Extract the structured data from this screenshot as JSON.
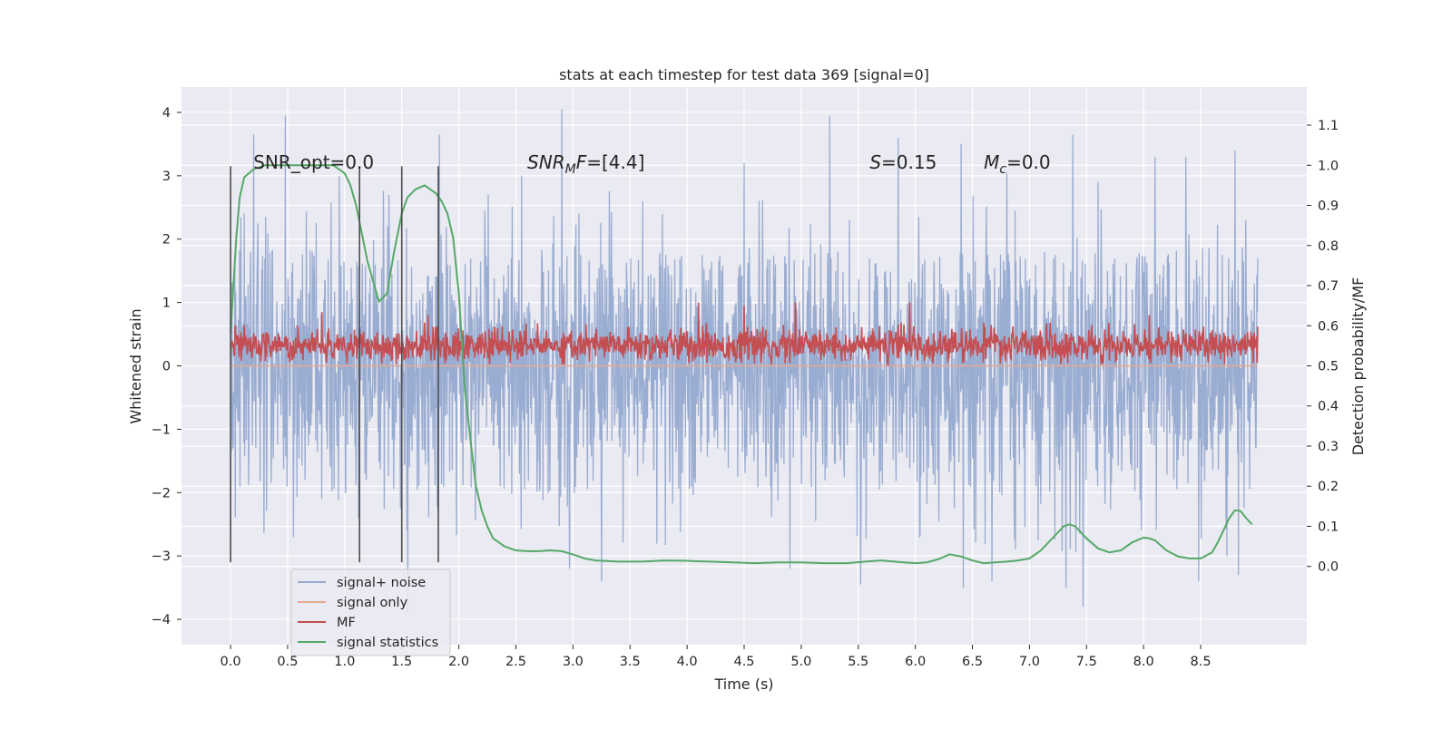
{
  "chart_data": {
    "type": "line",
    "title": "stats at each timestep for test data 369 [signal=0]",
    "xlabel": "Time (s)",
    "ylabel": "Whitened strain",
    "ylabel_right": "Detection probability/MF",
    "xlim": [
      -0.43,
      9.43
    ],
    "ylim": [
      -4.4,
      4.4
    ],
    "ylim_right": [
      -0.195,
      1.195
    ],
    "x_ticks": [
      0.0,
      0.5,
      1.0,
      1.5,
      2.0,
      2.5,
      3.0,
      3.5,
      4.0,
      4.5,
      5.0,
      5.5,
      6.0,
      6.5,
      7.0,
      7.5,
      8.0,
      8.5
    ],
    "x_tick_labels": [
      "0.0",
      "0.5",
      "1.0",
      "1.5",
      "2.0",
      "2.5",
      "3.0",
      "3.5",
      "4.0",
      "4.5",
      "5.0",
      "5.5",
      "6.0",
      "6.5",
      "7.0",
      "7.5",
      "8.0",
      "8.5"
    ],
    "y_ticks": [
      4,
      3,
      2,
      1,
      0,
      -1,
      -2,
      -3,
      -4
    ],
    "y_tick_labels": [
      "4",
      "3",
      "2",
      "1",
      "0",
      "−1",
      "−2",
      "−3",
      "−4"
    ],
    "y_right_ticks": [
      1.1,
      1.0,
      0.9,
      0.8,
      0.7,
      0.6,
      0.5,
      0.4,
      0.3,
      0.2,
      0.1,
      0.0
    ],
    "y_right_tick_labels": [
      "1.1",
      "1.0",
      "0.9",
      "0.8",
      "0.7",
      "0.6",
      "0.5",
      "0.4",
      "0.3",
      "0.2",
      "0.1",
      "0.0"
    ],
    "grid": true,
    "legend_position": "lower-left",
    "series": [
      {
        "name": "signal+ noise",
        "color": "#95a9cf",
        "axis": "left",
        "x_range": [
          0.0,
          9.0
        ],
        "approx_range": [
          -3.9,
          4.0
        ],
        "envelope_upper": [
          [
            0.0,
            1.8
          ],
          [
            0.25,
            1.9
          ],
          [
            0.5,
            1.8
          ],
          [
            1.0,
            1.7
          ],
          [
            1.5,
            1.8
          ],
          [
            2.0,
            1.7
          ],
          [
            2.5,
            1.8
          ],
          [
            3.0,
            1.9
          ],
          [
            3.5,
            1.7
          ],
          [
            4.0,
            1.8
          ],
          [
            4.5,
            1.7
          ],
          [
            5.0,
            1.8
          ],
          [
            5.5,
            1.8
          ],
          [
            6.0,
            1.8
          ],
          [
            6.5,
            1.8
          ],
          [
            7.0,
            1.8
          ],
          [
            7.5,
            1.8
          ],
          [
            8.0,
            1.8
          ],
          [
            8.5,
            1.9
          ],
          [
            9.0,
            1.8
          ]
        ],
        "envelope_lower": [
          [
            0.0,
            -2.1
          ],
          [
            0.25,
            -2.0
          ],
          [
            0.5,
            -2.1
          ],
          [
            1.0,
            -2.0
          ],
          [
            1.5,
            -2.1
          ],
          [
            2.0,
            -2.0
          ],
          [
            2.5,
            -2.1
          ],
          [
            3.0,
            -2.0
          ],
          [
            3.5,
            -2.0
          ],
          [
            4.0,
            -2.0
          ],
          [
            4.5,
            -2.1
          ],
          [
            5.0,
            -2.0
          ],
          [
            5.5,
            -2.1
          ],
          [
            6.0,
            -2.0
          ],
          [
            6.5,
            -2.0
          ],
          [
            7.0,
            -2.0
          ],
          [
            7.5,
            -2.1
          ],
          [
            8.0,
            -2.0
          ],
          [
            8.5,
            -2.0
          ],
          [
            9.0,
            -2.1
          ]
        ],
        "peaks": [
          [
            0.0,
            -2.7
          ],
          [
            0.2,
            3.65
          ],
          [
            0.48,
            3.95
          ],
          [
            0.55,
            -2.7
          ],
          [
            0.95,
            3.0
          ],
          [
            1.12,
            -2.4
          ],
          [
            1.55,
            -3.9
          ],
          [
            1.82,
            -2.3
          ],
          [
            1.83,
            3.65
          ],
          [
            2.55,
            3.0
          ],
          [
            2.9,
            4.05
          ],
          [
            2.97,
            -3.2
          ],
          [
            3.05,
            2.4
          ],
          [
            3.25,
            -3.4
          ],
          [
            4.5,
            3.2
          ],
          [
            4.9,
            -3.2
          ],
          [
            5.25,
            3.95
          ],
          [
            5.42,
            2.3
          ],
          [
            5.52,
            -3.45
          ],
          [
            5.85,
            3.6
          ],
          [
            6.4,
            3.5
          ],
          [
            6.42,
            -3.5
          ],
          [
            6.67,
            -3.4
          ],
          [
            6.8,
            3.05
          ],
          [
            7.32,
            -3.5
          ],
          [
            7.38,
            3.65
          ],
          [
            7.47,
            -3.8
          ],
          [
            7.6,
            2.9
          ],
          [
            8.1,
            3.3
          ],
          [
            8.37,
            3.3
          ],
          [
            8.48,
            -3.4
          ],
          [
            8.73,
            -3.0
          ],
          [
            8.8,
            3.4
          ],
          [
            8.83,
            -3.3
          ],
          [
            9.0,
            1.7
          ]
        ]
      },
      {
        "name": "signal only",
        "color": "#e8a990",
        "axis": "left",
        "x": [
          0.0,
          9.0
        ],
        "y": [
          0.0,
          0.0
        ]
      },
      {
        "name": "MF",
        "color": "#c44e52",
        "axis": "left",
        "x_range": [
          0.0,
          9.0
        ],
        "approx_range": [
          0.0,
          1.05
        ],
        "mean": 0.32,
        "notable_spikes": [
          [
            0.8,
            0.85
          ],
          [
            1.13,
            0.6
          ],
          [
            1.73,
            0.8
          ],
          [
            4.1,
            1.0
          ],
          [
            4.5,
            0.95
          ],
          [
            4.95,
            1.0
          ],
          [
            5.95,
            1.0
          ],
          [
            8.05,
            0.8
          ]
        ]
      },
      {
        "name": "signal statistics",
        "color": "#55a868",
        "axis": "right",
        "x": [
          0.0,
          0.05,
          0.08,
          0.12,
          0.2,
          0.3,
          0.4,
          0.5,
          0.6,
          0.7,
          0.8,
          0.9,
          0.95,
          1.0,
          1.05,
          1.1,
          1.15,
          1.2,
          1.25,
          1.3,
          1.37,
          1.43,
          1.5,
          1.55,
          1.62,
          1.7,
          1.75,
          1.8,
          1.85,
          1.9,
          1.95,
          2.0,
          2.05,
          2.1,
          2.15,
          2.2,
          2.25,
          2.3,
          2.4,
          2.5,
          2.6,
          2.7,
          2.8,
          2.9,
          3.0,
          3.1,
          3.2,
          3.4,
          3.6,
          3.8,
          4.0,
          4.2,
          4.4,
          4.6,
          4.8,
          5.0,
          5.2,
          5.4,
          5.6,
          5.7,
          5.9,
          6.0,
          6.1,
          6.2,
          6.3,
          6.4,
          6.5,
          6.6,
          6.7,
          6.8,
          6.9,
          7.0,
          7.1,
          7.2,
          7.3,
          7.35,
          7.4,
          7.5,
          7.6,
          7.7,
          7.8,
          7.9,
          8.0,
          8.05,
          8.1,
          8.2,
          8.3,
          8.4,
          8.5,
          8.6,
          8.65,
          8.7,
          8.75,
          8.8,
          8.85,
          8.9,
          8.95
        ],
        "y": [
          0.58,
          0.82,
          0.92,
          0.97,
          0.99,
          1.0,
          1.0,
          1.0,
          1.0,
          1.0,
          1.0,
          1.0,
          0.99,
          0.98,
          0.95,
          0.9,
          0.83,
          0.76,
          0.71,
          0.66,
          0.68,
          0.78,
          0.88,
          0.92,
          0.94,
          0.95,
          0.94,
          0.93,
          0.91,
          0.88,
          0.82,
          0.68,
          0.45,
          0.32,
          0.2,
          0.14,
          0.1,
          0.07,
          0.05,
          0.04,
          0.038,
          0.038,
          0.04,
          0.038,
          0.03,
          0.02,
          0.015,
          0.012,
          0.012,
          0.015,
          0.014,
          0.012,
          0.01,
          0.008,
          0.01,
          0.01,
          0.008,
          0.008,
          0.013,
          0.015,
          0.01,
          0.008,
          0.01,
          0.018,
          0.03,
          0.025,
          0.015,
          0.008,
          0.01,
          0.012,
          0.015,
          0.02,
          0.04,
          0.07,
          0.1,
          0.105,
          0.1,
          0.07,
          0.045,
          0.035,
          0.04,
          0.06,
          0.072,
          0.07,
          0.065,
          0.04,
          0.025,
          0.02,
          0.02,
          0.035,
          0.06,
          0.09,
          0.12,
          0.14,
          0.138,
          0.12,
          0.105
        ]
      }
    ],
    "vertical_markers": [
      0.0,
      1.13,
      1.5,
      1.82
    ],
    "vertical_marker_range": [
      -3.1,
      3.15
    ],
    "annotations": [
      {
        "text": "SNR_opt=0.0",
        "x": 0.2,
        "y": 3.2
      },
      {
        "text_main": "SNR",
        "text_sub": "M",
        "text_tail": "F=[4.4]",
        "x": 2.6,
        "y": 3.2,
        "italic": true
      },
      {
        "text_main": "S",
        "text_tail": "=0.15",
        "x": 5.6,
        "y": 3.2,
        "italic": true
      },
      {
        "text_main": "M",
        "text_sub": "c",
        "text_tail": "=0.0",
        "x": 6.6,
        "y": 3.2,
        "italic": true
      }
    ]
  }
}
